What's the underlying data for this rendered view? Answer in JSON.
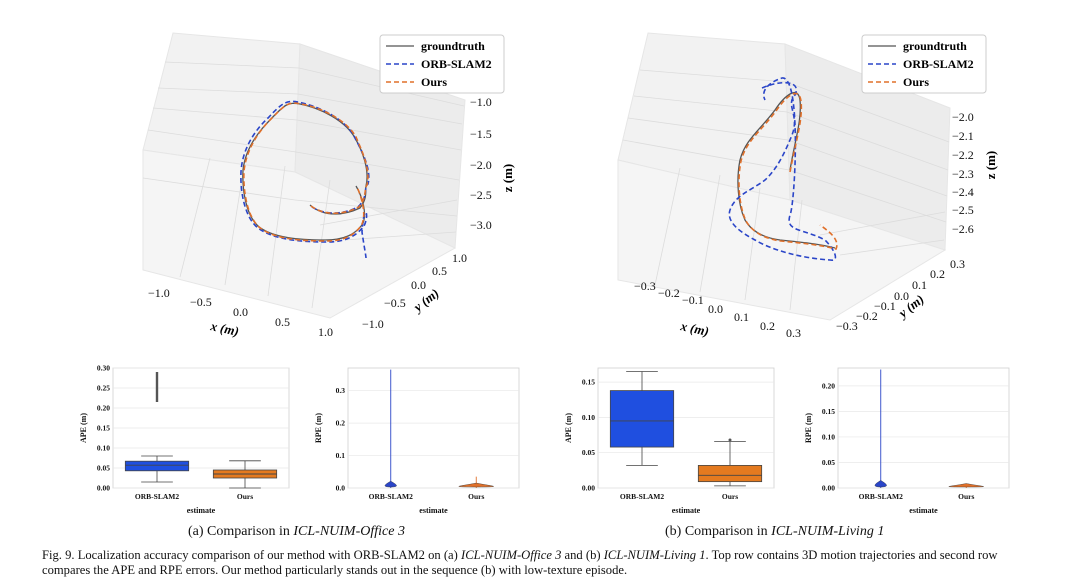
{
  "panel_a": {
    "caption_prefix": "(a) Comparison in ",
    "caption_seq": "ICL-NUIM-Office 3"
  },
  "panel_b": {
    "caption_prefix": "(b) Comparison in ",
    "caption_seq": "ICL-NUIM-Living 1"
  },
  "figure_caption": {
    "part1": "Fig. 9.  Localization accuracy comparison of our method with ORB-SLAM2 on (a) ",
    "seq_a": "ICL-NUIM-Office 3",
    "part2": " and (b) ",
    "seq_b": "ICL-NUIM-Living 1",
    "part3": ". Top row contains 3D motion trajectories and second row compares the APE and RPE errors. Our method particularly stands out in the sequence (b) with low-texture episode."
  },
  "colors": {
    "groundtruth": "#555555",
    "orb": "#2a45c8",
    "ours": "#e0702a",
    "box_orb": "#1f4fe0",
    "box_ours": "#e47a1f"
  },
  "chart_data": [
    {
      "type": "line",
      "kind": "3d-trajectory",
      "legend": [
        "groundtruth",
        "ORB-SLAM2",
        "Ours"
      ],
      "legend_placement": "top-right",
      "xlabel": "x (m)",
      "ylabel": "y (m)",
      "zlabel": "z (m)",
      "x_ticks": [
        "−1.0",
        "−0.5",
        "0.0",
        "0.5",
        "1.0"
      ],
      "y_ticks": [
        "1.0",
        "0.5",
        "0.0",
        "−0.5",
        "−1.0"
      ],
      "z_ticks": [
        "−1.0",
        "−1.5",
        "−2.0",
        "−2.5",
        "−3.0"
      ]
    },
    {
      "type": "line",
      "kind": "3d-trajectory",
      "legend": [
        "groundtruth",
        "ORB-SLAM2",
        "Ours"
      ],
      "legend_placement": "top-right",
      "xlabel": "x (m)",
      "ylabel": "y (m)",
      "zlabel": "z (m)",
      "x_ticks": [
        "−0.3",
        "−0.2",
        "−0.1",
        "0.0",
        "0.1",
        "0.2",
        "0.3"
      ],
      "y_ticks": [
        "0.3",
        "0.2",
        "0.1",
        "0.0",
        "−0.1",
        "−0.2",
        "−0.3"
      ],
      "z_ticks": [
        "−2.0",
        "−2.1",
        "−2.2",
        "−2.3",
        "−2.4",
        "−2.5",
        "−2.6"
      ]
    },
    {
      "type": "box",
      "xlabel": "estimate",
      "ylabel": "APE (m)",
      "categories": [
        "ORB-SLAM2",
        "Ours"
      ],
      "ylim": [
        0,
        0.3
      ],
      "yticks": [
        "0.00",
        "0.05",
        "0.10",
        "0.15",
        "0.20",
        "0.25",
        "0.30"
      ],
      "boxes": [
        {
          "min": 0.015,
          "q1": 0.043,
          "median": 0.057,
          "q3": 0.067,
          "max": 0.08,
          "outliers": [
            0.215,
            0.29
          ]
        },
        {
          "min": 0.0,
          "q1": 0.025,
          "median": 0.035,
          "q3": 0.045,
          "max": 0.068,
          "outliers": []
        }
      ]
    },
    {
      "type": "violin",
      "xlabel": "estimate",
      "ylabel": "RPE (m)",
      "categories": [
        "ORB-SLAM2",
        "Ours"
      ],
      "ylim": [
        0,
        0.37
      ],
      "yticks": [
        "0.0",
        "0.1",
        "0.2",
        "0.3"
      ],
      "violins": [
        {
          "max": 0.365,
          "bulk": 0.012
        },
        {
          "max": 0.035,
          "bulk": 0.006
        }
      ]
    },
    {
      "type": "box",
      "xlabel": "estimate",
      "ylabel": "APE (m)",
      "categories": [
        "ORB-SLAM2",
        "Ours"
      ],
      "ylim": [
        0,
        0.17
      ],
      "yticks": [
        "0.00",
        "0.05",
        "0.10",
        "0.15"
      ],
      "boxes": [
        {
          "min": 0.032,
          "q1": 0.058,
          "median": 0.095,
          "q3": 0.138,
          "max": 0.165,
          "outliers": []
        },
        {
          "min": 0.003,
          "q1": 0.009,
          "median": 0.018,
          "q3": 0.032,
          "max": 0.066,
          "outliers": [
            0.068
          ]
        }
      ]
    },
    {
      "type": "violin",
      "xlabel": "estimate",
      "ylabel": "RPE (m)",
      "categories": [
        "ORB-SLAM2",
        "Ours"
      ],
      "ylim": [
        0,
        0.235
      ],
      "yticks": [
        "0.00",
        "0.05",
        "0.10",
        "0.15",
        "0.20"
      ],
      "violins": [
        {
          "max": 0.232,
          "bulk": 0.009
        },
        {
          "max": 0.006,
          "bulk": 0.003
        }
      ]
    }
  ]
}
